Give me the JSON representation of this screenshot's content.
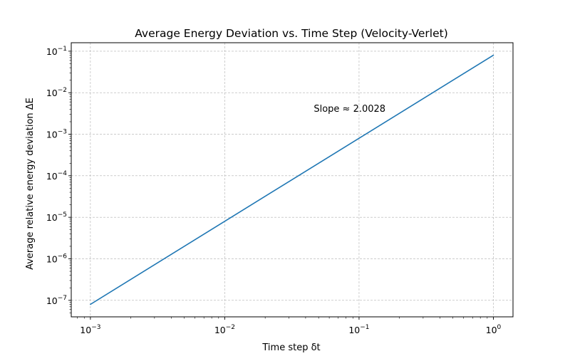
{
  "chart_data": {
    "type": "line",
    "title": "Average Energy Deviation vs. Time Step (Velocity-Verlet)",
    "xlabel": "Time step δt",
    "ylabel": "Average relative energy deviation ΔE",
    "xscale": "log",
    "yscale": "log",
    "xlim": [
      0.00072,
      1.4
    ],
    "ylim": [
      4e-08,
      0.16
    ],
    "grid": true,
    "x_ticks": [
      {
        "value": 0.001,
        "base": "10",
        "exp": "−3"
      },
      {
        "value": 0.01,
        "base": "10",
        "exp": "−2"
      },
      {
        "value": 0.1,
        "base": "10",
        "exp": "−1"
      },
      {
        "value": 1,
        "base": "10",
        "exp": "0"
      }
    ],
    "y_ticks": [
      {
        "value": 1e-07,
        "base": "10",
        "exp": "−7"
      },
      {
        "value": 1e-06,
        "base": "10",
        "exp": "−6"
      },
      {
        "value": 1e-05,
        "base": "10",
        "exp": "−5"
      },
      {
        "value": 0.0001,
        "base": "10",
        "exp": "−4"
      },
      {
        "value": 0.001,
        "base": "10",
        "exp": "−3"
      },
      {
        "value": 0.01,
        "base": "10",
        "exp": "−2"
      },
      {
        "value": 0.1,
        "base": "10",
        "exp": "−1"
      }
    ],
    "series": [
      {
        "color": "#1f77b4",
        "x": [
          0.001,
          0.01,
          0.1,
          1
        ],
        "y": [
          8e-08,
          8e-06,
          0.0008,
          0.08
        ]
      }
    ],
    "annotations": [
      {
        "text": "Slope ≈ 2.0028",
        "x": 0.046,
        "y": 0.0035
      }
    ]
  }
}
